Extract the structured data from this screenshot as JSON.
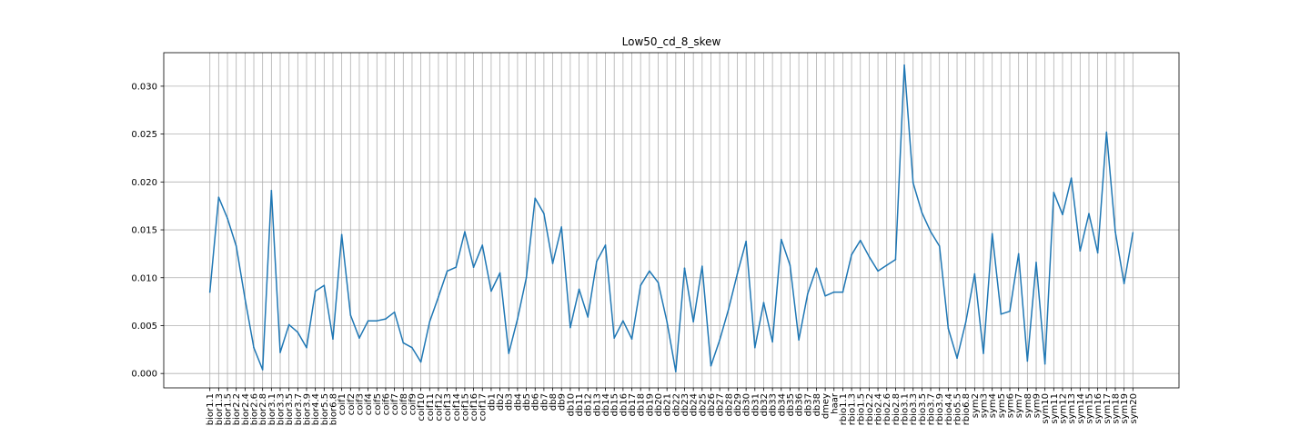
{
  "chart_data": {
    "type": "line",
    "title": "Low50_cd_8_skew",
    "xlabel": "",
    "ylabel": "",
    "ylim": [
      -0.0015,
      0.0335
    ],
    "yticks": [
      "0.000",
      "0.005",
      "0.010",
      "0.015",
      "0.020",
      "0.025",
      "0.030"
    ],
    "ytick_values": [
      0,
      0.005,
      0.01,
      0.015,
      0.02,
      0.025,
      0.03
    ],
    "grid": true,
    "line_color": "#1f77b4",
    "categories": [
      "bior1.1",
      "bior1.3",
      "bior1.5",
      "bior2.2",
      "bior2.4",
      "bior2.6",
      "bior2.8",
      "bior3.1",
      "bior3.3",
      "bior3.5",
      "bior3.7",
      "bior3.9",
      "bior4.4",
      "bior5.5",
      "bior6.8",
      "coif1",
      "coif2",
      "coif3",
      "coif4",
      "coif5",
      "coif6",
      "coif7",
      "coif8",
      "coif9",
      "coif10",
      "coif11",
      "coif12",
      "coif13",
      "coif14",
      "coif15",
      "coif16",
      "coif17",
      "db1",
      "db2",
      "db3",
      "db4",
      "db5",
      "db6",
      "db7",
      "db8",
      "db9",
      "db10",
      "db11",
      "db12",
      "db13",
      "db14",
      "db15",
      "db16",
      "db17",
      "db18",
      "db19",
      "db20",
      "db21",
      "db22",
      "db23",
      "db24",
      "db25",
      "db26",
      "db27",
      "db28",
      "db29",
      "db30",
      "db31",
      "db32",
      "db33",
      "db34",
      "db35",
      "db36",
      "db37",
      "db38",
      "dmey",
      "haar",
      "rbio1.1",
      "rbio1.3",
      "rbio1.5",
      "rbio2.2",
      "rbio2.4",
      "rbio2.6",
      "rbio2.8",
      "rbio3.1",
      "rbio3.3",
      "rbio3.5",
      "rbio3.7",
      "rbio3.9",
      "rbio4.4",
      "rbio5.5",
      "rbio6.8",
      "sym2",
      "sym3",
      "sym4",
      "sym5",
      "sym6",
      "sym7",
      "sym8",
      "sym9",
      "sym10",
      "sym11",
      "sym12",
      "sym13",
      "sym14",
      "sym15",
      "sym16",
      "sym17",
      "sym18",
      "sym19",
      "sym20"
    ],
    "values": [
      0.0085,
      0.0184,
      0.0162,
      0.0133,
      0.0078,
      0.0027,
      0.0004,
      0.0191,
      0.0022,
      0.0051,
      0.0043,
      0.0027,
      0.0086,
      0.0092,
      0.0036,
      0.0145,
      0.0061,
      0.0037,
      0.0055,
      0.0055,
      0.0057,
      0.0064,
      0.0032,
      0.0027,
      0.0012,
      0.0054,
      0.008,
      0.0107,
      0.0111,
      0.0148,
      0.0111,
      0.0134,
      0.0086,
      0.0105,
      0.0021,
      0.0057,
      0.01,
      0.0183,
      0.0167,
      0.0115,
      0.0153,
      0.0048,
      0.0088,
      0.0059,
      0.0117,
      0.0134,
      0.0037,
      0.0055,
      0.0036,
      0.0092,
      0.0107,
      0.0095,
      0.0054,
      0.0002,
      0.011,
      0.0054,
      0.0112,
      0.0008,
      0.0035,
      0.0067,
      0.0104,
      0.0138,
      0.0027,
      0.0074,
      0.0033,
      0.014,
      0.0113,
      0.0035,
      0.0083,
      0.011,
      0.0081,
      0.0085,
      0.0085,
      0.0124,
      0.0139,
      0.0122,
      0.0107,
      0.0113,
      0.0119,
      0.0322,
      0.0199,
      0.0168,
      0.0148,
      0.0133,
      0.0047,
      0.0016,
      0.0054,
      0.0104,
      0.0021,
      0.0146,
      0.0062,
      0.0065,
      0.0125,
      0.0013,
      0.0116,
      0.001,
      0.0189,
      0.0166,
      0.0204,
      0.0128,
      0.0167,
      0.0126,
      0.0252,
      0.0148,
      0.0094,
      0.0147
    ]
  }
}
